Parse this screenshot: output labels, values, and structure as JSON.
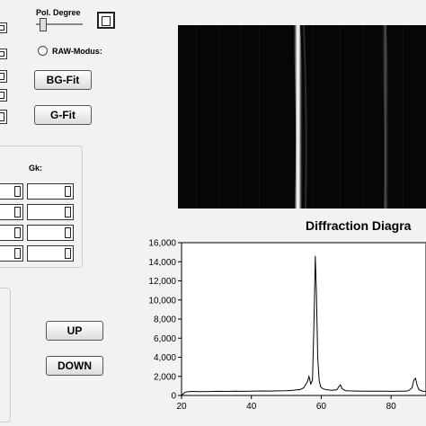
{
  "controls": {
    "pol_degree_label": "Pol. Degree",
    "raw_mode_label": "RAW-Modus:",
    "bg_fit_label": "BG-Fit",
    "g_fit_label": "G-Fit",
    "gk_label": "Gk:",
    "up_label": "UP",
    "down_label": "DOWN"
  },
  "plot": {
    "title": "Diffraction Diagra"
  },
  "chart_data": {
    "type": "line",
    "title": "Diffraction Diagra",
    "xlabel": "",
    "ylabel": "",
    "xlim": [
      20,
      90
    ],
    "ylim": [
      0,
      16000
    ],
    "x_ticks": [
      "20",
      "40",
      "60",
      "80"
    ],
    "x_tick_values": [
      20,
      40,
      60,
      80
    ],
    "y_ticks": [
      "0",
      "2,000",
      "4,000",
      "6,000",
      "8,000",
      "10,000",
      "12,000",
      "14,000",
      "16,000"
    ],
    "y_tick_values": [
      0,
      2000,
      4000,
      6000,
      8000,
      10000,
      12000,
      14000,
      16000
    ],
    "grid": false,
    "series": [
      {
        "color": "#000000",
        "x": [
          20,
          21,
          22,
          23,
          25,
          28,
          30,
          33,
          35,
          38,
          40,
          43,
          45,
          48,
          50,
          52,
          54,
          55,
          56,
          56.5,
          57,
          57.5,
          58,
          58.3,
          58.6,
          59,
          59.4,
          59.8,
          60.5,
          61.5,
          63,
          64.5,
          65,
          65.5,
          66,
          67,
          68,
          70,
          72,
          75,
          78,
          80,
          82,
          84,
          85,
          86,
          86.5,
          87,
          87.5,
          88,
          89,
          90
        ],
        "y": [
          0,
          350,
          400,
          420,
          400,
          410,
          430,
          420,
          440,
          430,
          450,
          470,
          460,
          480,
          500,
          550,
          620,
          800,
          1400,
          2000,
          1200,
          1600,
          9000,
          14600,
          11000,
          4000,
          1600,
          900,
          700,
          600,
          550,
          600,
          900,
          1100,
          700,
          500,
          480,
          460,
          450,
          450,
          440,
          430,
          440,
          450,
          500,
          800,
          1600,
          1800,
          1000,
          600,
          450,
          420
        ]
      }
    ]
  }
}
